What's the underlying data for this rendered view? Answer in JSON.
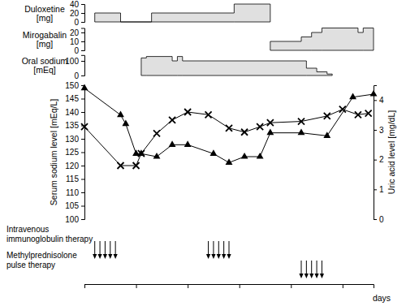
{
  "chart_data": [
    {
      "type": "step_area",
      "ylabel": [
        "Duloxetine",
        "[mg]"
      ],
      "color": "#e0e0e0",
      "x": [
        2,
        7,
        13,
        29,
        36
      ],
      "values": [
        20,
        0,
        20,
        40,
        0
      ],
      "xlim": [
        0,
        56
      ],
      "ylim": [
        0,
        40
      ],
      "yticks": [
        0,
        20,
        40
      ]
    },
    {
      "type": "step_area",
      "ylabel": [
        "Mirogabalin",
        "[mg]"
      ],
      "color": "#e0e0e0",
      "x": [
        36,
        42,
        44,
        46,
        53,
        54,
        56
      ],
      "values": [
        10,
        15,
        20,
        25,
        20,
        25,
        25
      ],
      "xlim": [
        0,
        56
      ],
      "ylim": [
        0,
        25
      ],
      "yticks": [
        0,
        10,
        20
      ]
    },
    {
      "type": "step_area",
      "ylabel": [
        "Oral sodium",
        "[mEq]"
      ],
      "color": "#e0e0e0",
      "x": [
        11,
        12,
        17,
        18,
        19,
        43,
        45,
        47,
        48
      ],
      "values": [
        120,
        130,
        100,
        130,
        100,
        50,
        25,
        10,
        0
      ],
      "xlim": [
        0,
        56
      ],
      "ylim": [
        0,
        140
      ],
      "yticks": [
        0,
        100
      ]
    },
    {
      "type": "line",
      "xlabel": "days",
      "ylabel": "Serum sodium level [mEq/L]",
      "y2label": "Uric acid level [mg/dL]",
      "xlim": [
        0,
        56
      ],
      "xticks": [
        0,
        10,
        20,
        30,
        40,
        50
      ],
      "tick_labels": "y",
      "ylim": [
        100,
        150
      ],
      "yticks": [
        100,
        105,
        110,
        115,
        120,
        125,
        130,
        135,
        140,
        145,
        150
      ],
      "y2lim": [
        0,
        4.5
      ],
      "y2ticks": [
        0,
        1,
        2,
        3,
        4
      ],
      "series": [
        {
          "color": "#000000",
          "marker": "x",
          "x": [
            0,
            7,
            10,
            11,
            14,
            17,
            20,
            24,
            28,
            31,
            34,
            36,
            42,
            47,
            50,
            53,
            55
          ],
          "values": [
            134.5,
            120,
            120,
            124.5,
            132,
            137,
            140,
            139,
            134,
            132.5,
            134.5,
            136,
            136.5,
            138.5,
            141,
            139,
            139.5
          ]
        },
        {
          "color": "#000000",
          "marker": "triangle",
          "axis": "y2",
          "x": [
            0,
            7,
            8,
            10,
            11,
            14,
            17,
            20,
            25,
            28,
            31,
            34,
            36,
            42,
            47,
            52,
            56
          ],
          "values": [
            4.4,
            3.5,
            3.2,
            2.2,
            2.2,
            2.1,
            2.5,
            2.5,
            2.2,
            1.9,
            2.1,
            2.1,
            2.9,
            2.9,
            2.8,
            4.1,
            4.2
          ]
        }
      ]
    },
    {
      "type": "event",
      "xlim": [
        0,
        56
      ],
      "color": "#000000",
      "series": [
        {
          "label": [
            "Intravenous",
            "immunoglobulin therapy"
          ],
          "x": [
            2,
            3,
            4,
            5,
            6,
            24,
            25,
            26,
            27,
            28
          ]
        },
        {
          "label": [
            "Methylprednisolone",
            "pulse therapy"
          ],
          "x": [
            42,
            43,
            44,
            45,
            46
          ]
        }
      ]
    }
  ]
}
